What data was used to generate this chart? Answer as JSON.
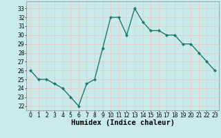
{
  "x": [
    0,
    1,
    2,
    3,
    4,
    5,
    6,
    7,
    8,
    9,
    10,
    11,
    12,
    13,
    14,
    15,
    16,
    17,
    18,
    19,
    20,
    21,
    22,
    23
  ],
  "y": [
    26,
    25,
    25,
    24.5,
    24,
    23,
    22,
    24.5,
    25,
    28.5,
    32,
    32,
    30,
    33,
    31.5,
    30.5,
    30.5,
    30,
    30,
    29,
    29,
    28,
    27,
    26
  ],
  "line_color": "#1a7a65",
  "marker": "D",
  "marker_size": 2.0,
  "bg_color": "#c8eaea",
  "grid_color": "#e8c8c8",
  "xlabel": "Humidex (Indice chaleur)",
  "xlabel_fontsize": 7.5,
  "xlabel_fontweight": "bold",
  "xlim": [
    -0.5,
    23.5
  ],
  "ylim": [
    21.5,
    33.8
  ],
  "yticks": [
    22,
    23,
    24,
    25,
    26,
    27,
    28,
    29,
    30,
    31,
    32,
    33
  ],
  "xticks": [
    0,
    1,
    2,
    3,
    4,
    5,
    6,
    7,
    8,
    9,
    10,
    11,
    12,
    13,
    14,
    15,
    16,
    17,
    18,
    19,
    20,
    21,
    22,
    23
  ],
  "tick_fontsize": 5.5,
  "line_width": 1.0
}
